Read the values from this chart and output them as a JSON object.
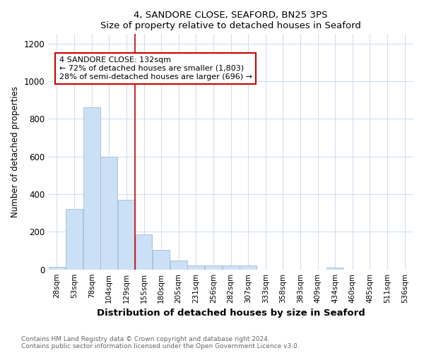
{
  "title1": "4, SANDORE CLOSE, SEAFORD, BN25 3PS",
  "title2": "Size of property relative to detached houses in Seaford",
  "xlabel": "Distribution of detached houses by size in Seaford",
  "ylabel": "Number of detached properties",
  "categories": [
    "28sqm",
    "53sqm",
    "78sqm",
    "104sqm",
    "129sqm",
    "155sqm",
    "180sqm",
    "205sqm",
    "231sqm",
    "256sqm",
    "282sqm",
    "307sqm",
    "333sqm",
    "358sqm",
    "383sqm",
    "409sqm",
    "434sqm",
    "460sqm",
    "485sqm",
    "511sqm",
    "536sqm"
  ],
  "values": [
    15,
    320,
    860,
    600,
    370,
    185,
    105,
    47,
    20,
    20,
    20,
    20,
    0,
    0,
    0,
    0,
    10,
    0,
    0,
    0,
    0
  ],
  "bar_color": "#cce0f5",
  "bar_edge_color": "#9bbfd8",
  "red_line_color": "#cc0000",
  "annotation_title": "4 SANDORE CLOSE: 132sqm",
  "annotation_line1": "← 72% of detached houses are smaller (1,803)",
  "annotation_line2": "28% of semi-detached houses are larger (696) →",
  "annotation_box_color": "#ffffff",
  "annotation_box_edge": "#cc0000",
  "ylim": [
    0,
    1250
  ],
  "yticks": [
    0,
    200,
    400,
    600,
    800,
    1000,
    1200
  ],
  "footer1": "Contains HM Land Registry data © Crown copyright and database right 2024.",
  "footer2": "Contains public sector information licensed under the Open Government Licence v3.0.",
  "bg_color": "#ffffff",
  "plot_bg_color": "#ffffff",
  "grid_color": "#d0dff0"
}
